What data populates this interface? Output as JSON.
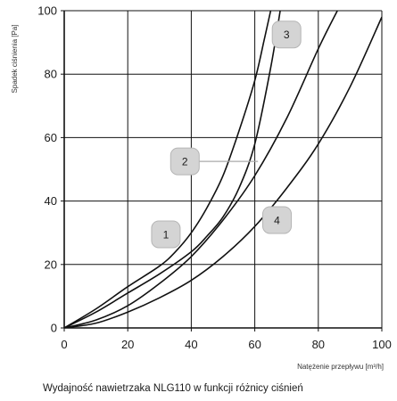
{
  "chart_data": {
    "type": "line",
    "title": "",
    "caption": "Wydajność nawietrzaka NLG110 w funkcji różnicy ciśnień",
    "xlabel": "Natężenie przepływu [m³/h]",
    "ylabel": "Spadek ciśnienia [Pa]",
    "xlim": [
      0,
      100
    ],
    "ylim": [
      0,
      100
    ],
    "xticks": [
      0,
      20,
      40,
      60,
      80,
      100
    ],
    "yticks": [
      0,
      20,
      40,
      60,
      80,
      100
    ],
    "grid": true,
    "line_color": "#111111",
    "badge_color": "#d4d4d4",
    "series": [
      {
        "name": "1",
        "label_at": [
          32,
          29.5
        ],
        "x": [
          0,
          10,
          20,
          30,
          35,
          40,
          45,
          50,
          55,
          60,
          63,
          65
        ],
        "y": [
          0,
          6,
          13,
          19.5,
          24,
          30,
          38,
          48,
          62,
          78,
          91,
          100
        ]
      },
      {
        "name": "2",
        "label_at": [
          38,
          52.5
        ],
        "pointer_to": [
          61,
          52.5
        ],
        "x": [
          0,
          10,
          20,
          30,
          40,
          45,
          50,
          55,
          60,
          65,
          68
        ],
        "y": [
          0,
          5,
          11,
          17,
          24,
          29,
          35,
          44,
          58,
          82,
          100
        ]
      },
      {
        "name": "3",
        "label_at": [
          70,
          92.5
        ],
        "x": [
          0,
          10,
          20,
          30,
          40,
          50,
          60,
          70,
          80,
          86
        ],
        "y": [
          0,
          2.5,
          7,
          14,
          22.5,
          34,
          48,
          66,
          88,
          100
        ]
      },
      {
        "name": "4",
        "label_at": [
          67,
          34
        ],
        "x": [
          0,
          10,
          20,
          30,
          40,
          50,
          60,
          70,
          80,
          90,
          100
        ],
        "y": [
          0,
          1.5,
          5,
          9.5,
          15,
          22.5,
          32,
          44,
          58,
          76,
          98
        ]
      }
    ]
  }
}
